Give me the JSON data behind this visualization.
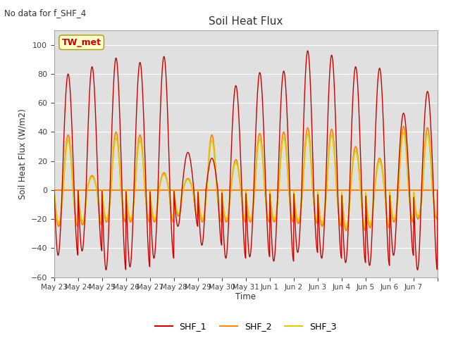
{
  "title": "Soil Heat Flux",
  "ylabel": "Soil Heat Flux (W/m2)",
  "xlabel": "Time",
  "note": "No data for f_SHF_4",
  "station_label": "TW_met",
  "ylim": [
    -60,
    110
  ],
  "yticks": [
    -60,
    -40,
    -20,
    0,
    20,
    40,
    60,
    80,
    100
  ],
  "color_SHF1": "#cc0000",
  "color_SHF2": "#ff8800",
  "color_SHF3": "#ddcc00",
  "bg_color": "#e0e0e0",
  "legend_labels": [
    "SHF_1",
    "SHF_2",
    "SHF_3"
  ],
  "x_tick_labels": [
    "May 23",
    "May 24",
    "May 25",
    "May 26",
    "May 27",
    "May 28",
    "May 29",
    "May 30",
    "May 31",
    "Jun 1",
    "Jun 2",
    "Jun 3",
    "Jun 4",
    "Jun 5",
    "Jun 6",
    "Jun 7"
  ],
  "num_days": 16
}
